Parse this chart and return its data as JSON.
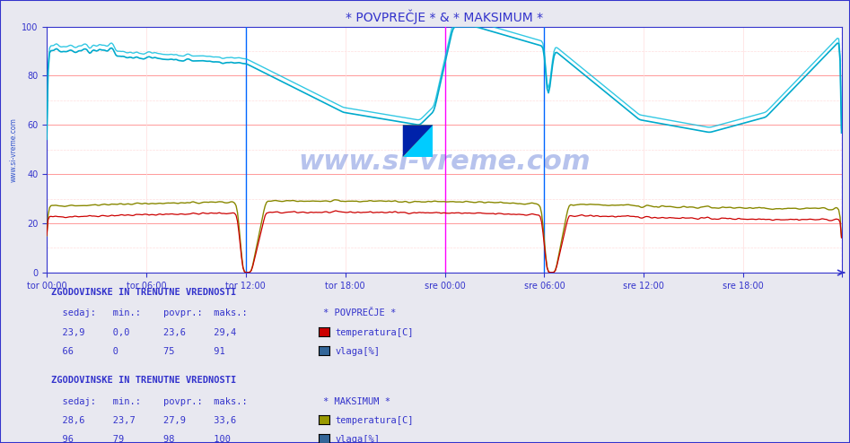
{
  "title": "* POVPREČJE * & * MAKSIMUM *",
  "title_color": "#3333cc",
  "bg_color": "#e8e8f0",
  "plot_bg_color": "#ffffff",
  "grid_color_major": "#ff9999",
  "grid_color_minor": "#ffdddd",
  "ylim": [
    0,
    100
  ],
  "yticks": [
    0,
    20,
    40,
    60,
    80,
    100
  ],
  "xtick_labels": [
    "tor 00:00",
    "tor 06:00",
    "tor 12:00",
    "tor 18:00",
    "sre 00:00",
    "sre 06:00",
    "sre 12:00",
    "sre 18:00"
  ],
  "n_points": 576,
  "watermark": "www.si-vreme.com",
  "watermark_color": "#3355cc",
  "watermark_alpha": 0.35,
  "vline_color_blue": "#0066ff",
  "vline_color_magenta": "#ff00ff",
  "temp_avg_color": "#cc0000",
  "hum_avg_color": "#00aacc",
  "temp_max_color": "#888800",
  "hum_max_color": "#00bbdd",
  "axis_color": "#3333cc",
  "tick_color": "#3333cc",
  "label_fontsize": 8,
  "title_fontsize": 10,
  "table_color": "#3333cc",
  "section1_header": "ZGODOVINSKE IN TRENUTNE VREDNOSTI",
  "section1_cols": [
    "sedaj:",
    "min.:",
    "povpr.:",
    "maks.:"
  ],
  "section1_title": "* POVPREČJE *",
  "section1_rows": [
    {
      "values": [
        "23,9",
        "0,0",
        "23,6",
        "29,4"
      ],
      "label": "temperatura[C]",
      "color": "#cc0000"
    },
    {
      "values": [
        "66",
        "0",
        "75",
        "91"
      ],
      "label": "vlaga[%]",
      "color": "#336699"
    }
  ],
  "section2_header": "ZGODOVINSKE IN TRENUTNE VREDNOSTI",
  "section2_cols": [
    "sedaj:",
    "min.:",
    "povpr.:",
    "maks.:"
  ],
  "section2_title": "* MAKSIMUM *",
  "section2_rows": [
    {
      "values": [
        "28,6",
        "23,7",
        "27,9",
        "33,6"
      ],
      "label": "temperatura[C]",
      "color": "#999900"
    },
    {
      "values": [
        "96",
        "79",
        "98",
        "100"
      ],
      "label": "vlaga[%]",
      "color": "#336699"
    }
  ]
}
